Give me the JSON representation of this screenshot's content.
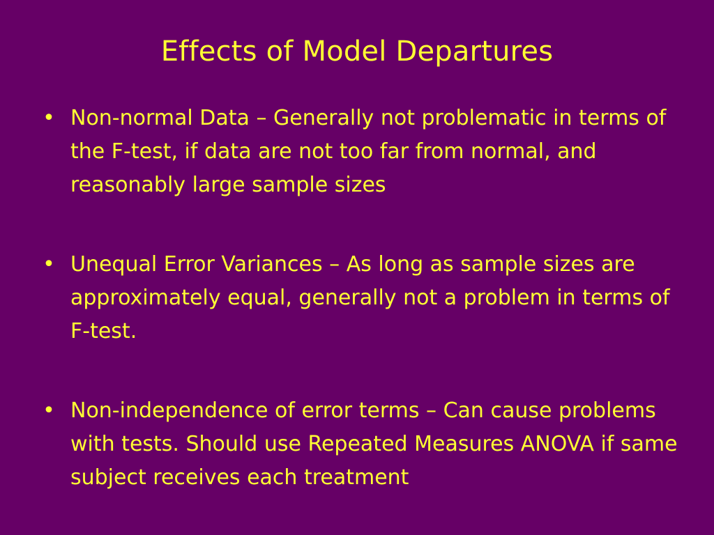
{
  "slide": {
    "title": "Effects of Model Departures",
    "bullets": [
      {
        "symbol": "•",
        "text": " Non-normal Data – Generally not problematic in terms of the F-test, if data are not too far from normal, and reasonably large sample sizes"
      },
      {
        "symbol": "•",
        "text": "Unequal Error Variances – As long as sample sizes are approximately equal, generally not a problem in terms of F-test."
      },
      {
        "symbol": "•",
        "text": "Non-independence of error terms – Can cause problems with tests. Should use Repeated Measures ANOVA if same subject receives each treatment"
      }
    ]
  },
  "colors": {
    "background": "#660066",
    "text": "#ffff33"
  }
}
